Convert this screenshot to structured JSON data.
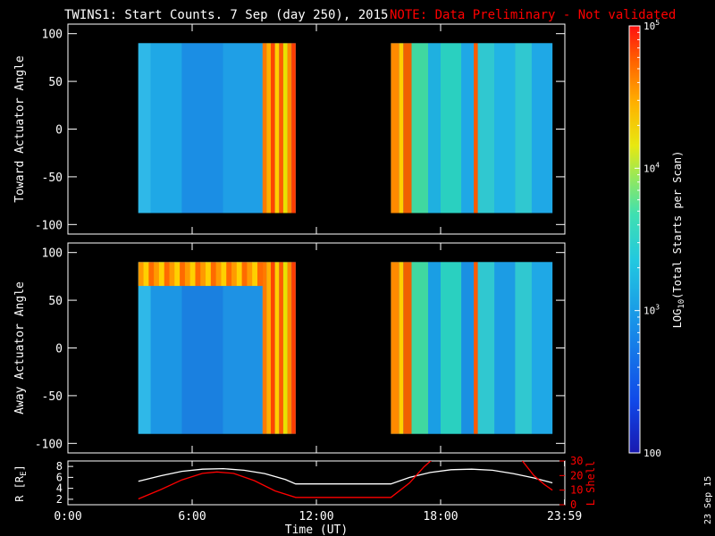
{
  "header": {
    "title": "TWINS1: Start Counts.  7 Sep (day 250), 2015",
    "note": "NOTE: Data Preliminary - Not validated",
    "note_color": "#ff0000"
  },
  "stamp": "23 Sep 15",
  "chart_data": [
    {
      "type": "heatmap",
      "panel": "toward",
      "ylabel": "Toward Actuator Angle",
      "ylim": [
        -110,
        110
      ],
      "yticks": [
        100,
        50,
        0,
        -50,
        -100
      ],
      "ytick_labels": [
        "100",
        "50",
        "0",
        "-50",
        "-100"
      ],
      "x_unit": "hours UT",
      "data_blocks": [
        {
          "x": [
            3.4,
            11.0
          ],
          "y": [
            -88,
            90
          ]
        },
        {
          "x": [
            15.6,
            23.4
          ],
          "y": [
            -88,
            90
          ]
        }
      ],
      "columns": [
        {
          "x": [
            3.4,
            4.0
          ],
          "c": "#2fb8e8"
        },
        {
          "x": [
            4.0,
            5.5
          ],
          "c": "#1fa8e6"
        },
        {
          "x": [
            5.5,
            7.5
          ],
          "c": "#1b8ee4"
        },
        {
          "x": [
            7.5,
            9.4
          ],
          "c": "#1f9fe6"
        },
        {
          "x": [
            9.4,
            9.6
          ],
          "c": "#ff7a00"
        },
        {
          "x": [
            9.6,
            9.8
          ],
          "c": "#ffb000"
        },
        {
          "x": [
            9.8,
            10.0
          ],
          "c": "#ff4500"
        },
        {
          "x": [
            10.0,
            10.2
          ],
          "c": "#ffd000"
        },
        {
          "x": [
            10.2,
            10.4
          ],
          "c": "#ff5a00"
        },
        {
          "x": [
            10.4,
            10.6
          ],
          "c": "#e8e000"
        },
        {
          "x": [
            10.6,
            10.8
          ],
          "c": "#ff8a00"
        },
        {
          "x": [
            10.8,
            11.0
          ],
          "c": "#ff3c00"
        },
        {
          "x": [
            15.6,
            16.0
          ],
          "c": "#ff8a00"
        },
        {
          "x": [
            16.0,
            16.2
          ],
          "c": "#ffd000"
        },
        {
          "x": [
            16.2,
            16.6
          ],
          "c": "#f06000"
        },
        {
          "x": [
            16.6,
            17.4
          ],
          "c": "#40d8a0"
        },
        {
          "x": [
            17.4,
            18.0
          ],
          "c": "#1fb0e0"
        },
        {
          "x": [
            18.0,
            19.0
          ],
          "c": "#2ad0c0"
        },
        {
          "x": [
            19.0,
            19.6
          ],
          "c": "#1fa8e6"
        },
        {
          "x": [
            19.6,
            19.8
          ],
          "c": "#ff5a00"
        },
        {
          "x": [
            19.8,
            20.6
          ],
          "c": "#30c8d0"
        },
        {
          "x": [
            20.6,
            21.6
          ],
          "c": "#22b4e4"
        },
        {
          "x": [
            21.6,
            22.4
          ],
          "c": "#30c8d0"
        },
        {
          "x": [
            22.4,
            23.4
          ],
          "c": "#1fa8e6"
        }
      ]
    },
    {
      "type": "heatmap",
      "panel": "away",
      "ylabel": "Away Actuator Angle",
      "ylim": [
        -110,
        110
      ],
      "yticks": [
        100,
        50,
        0,
        -50,
        -100
      ],
      "ytick_labels": [
        "100",
        "50",
        "0",
        "-50",
        "-100"
      ],
      "x_unit": "hours UT",
      "data_blocks": [
        {
          "x": [
            3.4,
            11.0
          ],
          "y": [
            -90,
            90
          ]
        },
        {
          "x": [
            15.6,
            23.4
          ],
          "y": [
            -90,
            90
          ]
        }
      ],
      "columns": [
        {
          "x": [
            3.4,
            4.0
          ],
          "c": "#2fb8e8"
        },
        {
          "x": [
            4.0,
            5.5
          ],
          "c": "#1c96e4"
        },
        {
          "x": [
            5.5,
            7.5
          ],
          "c": "#1a80e0"
        },
        {
          "x": [
            7.5,
            9.4
          ],
          "c": "#1e92e4"
        },
        {
          "x": [
            9.4,
            9.6
          ],
          "c": "#ff7a00"
        },
        {
          "x": [
            9.6,
            9.8
          ],
          "c": "#ffb000"
        },
        {
          "x": [
            9.8,
            10.0
          ],
          "c": "#ff4500"
        },
        {
          "x": [
            10.0,
            10.2
          ],
          "c": "#ffd000"
        },
        {
          "x": [
            10.2,
            10.4
          ],
          "c": "#ff5a00"
        },
        {
          "x": [
            10.4,
            10.6
          ],
          "c": "#e8e000"
        },
        {
          "x": [
            10.6,
            10.8
          ],
          "c": "#ff8a00"
        },
        {
          "x": [
            10.8,
            11.0
          ],
          "c": "#ff3c00"
        },
        {
          "x": [
            15.6,
            16.0
          ],
          "c": "#ff8a00"
        },
        {
          "x": [
            16.0,
            16.2
          ],
          "c": "#ffd000"
        },
        {
          "x": [
            16.2,
            16.6
          ],
          "c": "#f06000"
        },
        {
          "x": [
            16.6,
            17.4
          ],
          "c": "#40d8a0"
        },
        {
          "x": [
            17.4,
            18.0
          ],
          "c": "#1a9ee4"
        },
        {
          "x": [
            18.0,
            19.0
          ],
          "c": "#2ad0c0"
        },
        {
          "x": [
            19.0,
            19.6
          ],
          "c": "#1a90e2"
        },
        {
          "x": [
            19.6,
            19.8
          ],
          "c": "#ff5a00"
        },
        {
          "x": [
            19.8,
            20.6
          ],
          "c": "#30c8d0"
        },
        {
          "x": [
            20.6,
            21.6
          ],
          "c": "#1c9ce4"
        },
        {
          "x": [
            21.6,
            22.4
          ],
          "c": "#30c8d0"
        },
        {
          "x": [
            22.4,
            23.4
          ],
          "c": "#1fa8e6"
        }
      ],
      "top_band": {
        "x": [
          3.4,
          9.4
        ],
        "y": [
          65,
          90
        ],
        "colors": [
          "#ff9a00",
          "#ffd000",
          "#ff6a00"
        ]
      }
    },
    {
      "type": "line",
      "panel": "orbit",
      "xlim": [
        0,
        24
      ],
      "xticks": [
        0,
        6,
        12,
        18,
        23.983
      ],
      "xtick_labels": [
        "0:00",
        "6:00",
        "12:00",
        "18:00",
        "23:59"
      ],
      "xlabel": "Time (UT)",
      "ylabel_left": "R [R",
      "ylabel_left_sub": "E",
      "ylabel_left_end": "]",
      "ylim_left": [
        1,
        9
      ],
      "yticks_left": [
        8,
        6,
        4,
        2
      ],
      "ytick_labels_left": [
        "8",
        "6",
        "4",
        "2"
      ],
      "ylabel_right": "L Shell",
      "ylim_right": [
        0,
        30
      ],
      "yticks_right": [
        30,
        20,
        10,
        0
      ],
      "ytick_labels_right": [
        "30",
        "20",
        "10",
        "0"
      ],
      "series": [
        {
          "axis": "left",
          "color": "#ffffff",
          "x": [
            3.4,
            4.5,
            5.5,
            6.5,
            7.5,
            8.5,
            9.5,
            10.5,
            11.0,
            13.0,
            15.6,
            16.5,
            17.5,
            18.5,
            19.5,
            20.5,
            21.5,
            22.5,
            23.4
          ],
          "y": [
            5.3,
            6.3,
            7.1,
            7.5,
            7.6,
            7.3,
            6.7,
            5.6,
            4.8,
            4.8,
            4.8,
            6.0,
            6.9,
            7.4,
            7.5,
            7.3,
            6.7,
            5.9,
            5.0
          ]
        },
        {
          "axis": "right",
          "color": "#ff0000",
          "x": [
            3.4,
            4.5,
            5.5,
            6.5,
            7.2,
            8.0,
            9.0,
            10.0,
            11.0,
            13.0,
            15.6,
            16.5,
            17.2,
            17.6
          ],
          "y": [
            4.0,
            10.5,
            17.0,
            21.5,
            22.5,
            21.5,
            16.5,
            9.5,
            5.0,
            5.0,
            5.0,
            15.0,
            26.0,
            31.0
          ]
        },
        {
          "axis": "right",
          "color": "#ff0000",
          "x": [
            21.9,
            22.5,
            23.0,
            23.4
          ],
          "y": [
            31.0,
            20.0,
            14.0,
            10.0
          ]
        }
      ]
    }
  ],
  "colorbar": {
    "label": "LOG",
    "label_sub": "10",
    "label_rest": "(Total Starts per Scan)",
    "scale": "log",
    "range": [
      100,
      100000
    ],
    "ticks": [
      {
        "value": 100000,
        "base": "10",
        "exp": "5"
      },
      {
        "value": 10000,
        "base": "10",
        "exp": "4"
      },
      {
        "value": 1000,
        "base": "10",
        "exp": "3"
      },
      {
        "value": 100,
        "text": "100"
      }
    ],
    "colors": [
      "#1818b0",
      "#1048e8",
      "#1890e8",
      "#22c8e0",
      "#40e0b0",
      "#90e860",
      "#e8e810",
      "#ffb000",
      "#ff6000",
      "#ff1010"
    ]
  }
}
